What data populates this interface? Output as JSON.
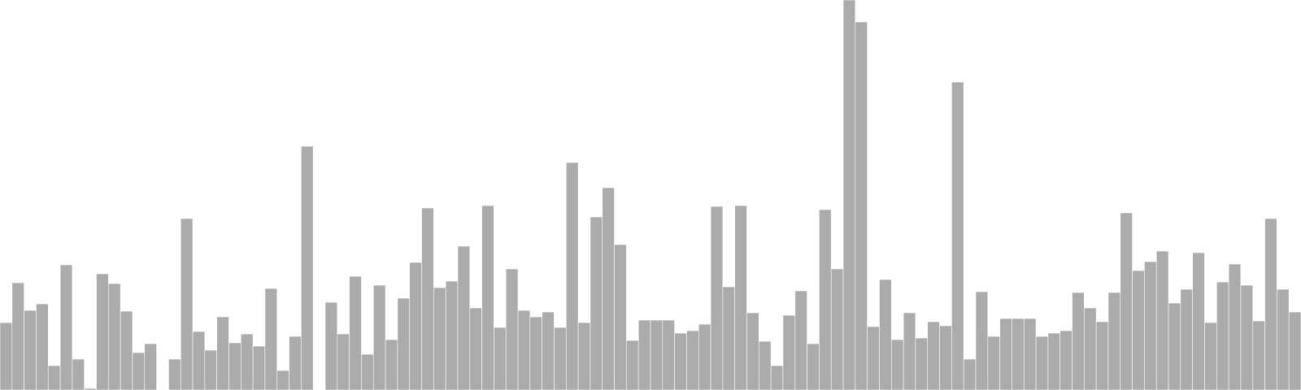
{
  "chart_data": {
    "type": "bar",
    "grid": false,
    "legend": "none",
    "ylim": [
      0,
      480
    ],
    "values": [
      83,
      132,
      98,
      106,
      30,
      154,
      38,
      2,
      143,
      131,
      97,
      46,
      57,
      0,
      38,
      211,
      72,
      49,
      90,
      58,
      69,
      54,
      125,
      24,
      66,
      300,
      0,
      108,
      69,
      140,
      44,
      129,
      62,
      113,
      157,
      224,
      126,
      134,
      177,
      101,
      227,
      77,
      149,
      98,
      90,
      96,
      77,
      280,
      83,
      213,
      249,
      179,
      61,
      86,
      86,
      86,
      70,
      73,
      81,
      226,
      127,
      227,
      95,
      60,
      30,
      92,
      122,
      57,
      222,
      149,
      480,
      453,
      78,
      136,
      62,
      95,
      64,
      84,
      79,
      379,
      38,
      121,
      66,
      88,
      88,
      88,
      66,
      70,
      73,
      120,
      101,
      84,
      120,
      218,
      147,
      158,
      171,
      107,
      124,
      169,
      83,
      133,
      155,
      129,
      85,
      211,
      124,
      96
    ],
    "colors": {
      "bar": "#ababab",
      "bar_stroke": "#ffffff",
      "background": "#ffffff"
    }
  }
}
